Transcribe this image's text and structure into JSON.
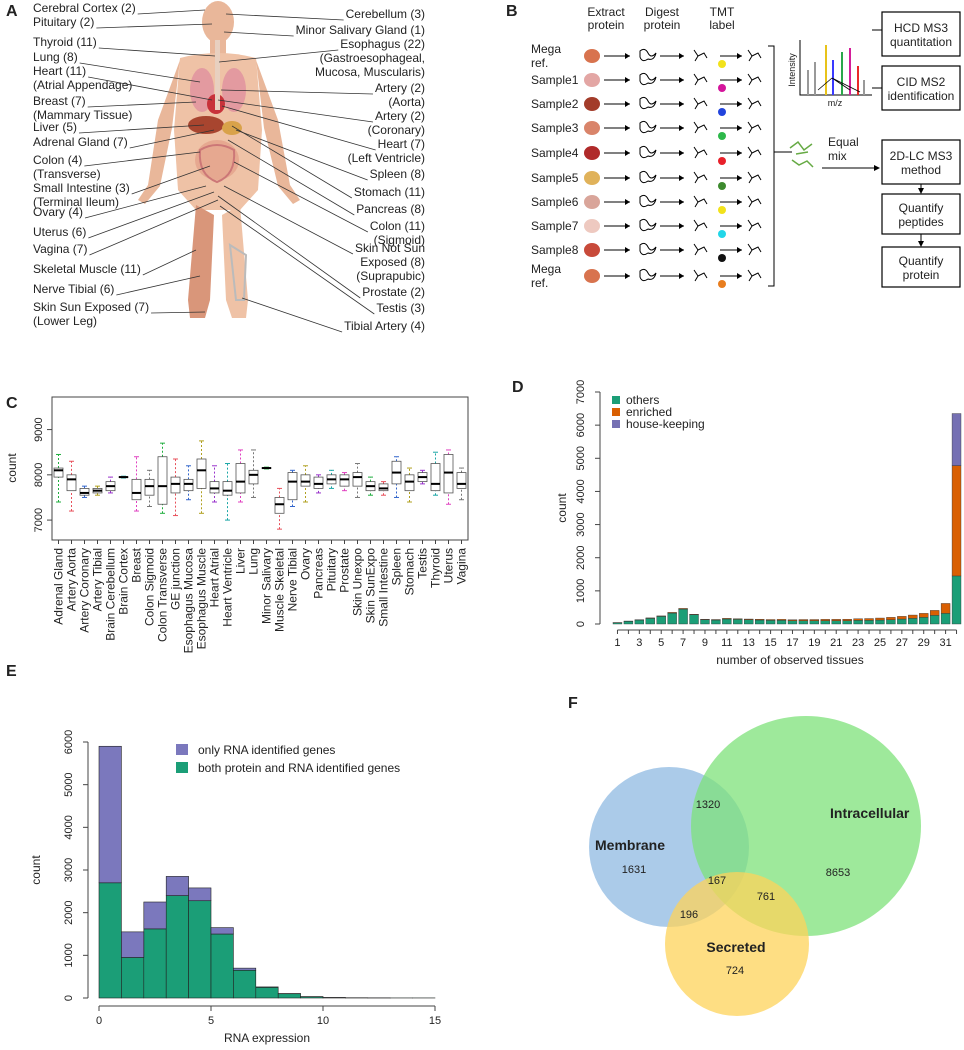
{
  "panel_labels": [
    "A",
    "B",
    "C",
    "D",
    "E",
    "F"
  ],
  "panel_a": {
    "left_labels": [
      [
        "Cerebral Cortex (2)"
      ],
      [
        "Pituitary (2)"
      ],
      [
        "Thyroid (11)"
      ],
      [
        "Lung (8)"
      ],
      [
        "Heart (11)",
        "(Atrial Appendage)"
      ],
      [
        "Breast (7)",
        "(Mammary Tissue)"
      ],
      [
        "Liver (5)"
      ],
      [
        "Adrenal Gland (7)"
      ],
      [
        "Colon (4)",
        "(Transverse)"
      ],
      [
        "Small Intestine (3)",
        "(Terminal Ileum)"
      ],
      [
        "Ovary (4)"
      ],
      [
        "Uterus (6)"
      ],
      [
        "Vagina (7)"
      ],
      [
        "Skeletal Muscle (11)"
      ],
      [
        "Nerve Tibial (6)"
      ],
      [
        "Skin Sun Exposed (7)",
        "(Lower Leg)"
      ]
    ],
    "right_labels": [
      [
        "Cerebellum (3)"
      ],
      [
        "Minor Salivary Gland (1)"
      ],
      [
        "Esophagus (22)",
        "(Gastroesophageal,",
        "Mucosa, Muscularis)"
      ],
      [
        "Artery (2)",
        "(Aorta)"
      ],
      [
        "Artery (2)",
        "(Coronary)"
      ],
      [
        "Heart (7)",
        "(Left Ventricle)"
      ],
      [
        "Spleen (8)"
      ],
      [
        "Stomach (11)"
      ],
      [
        "Pancreas (8)"
      ],
      [
        "Colon (11)",
        "(Sigmoid)"
      ],
      [
        "Skin Not Sun",
        "Exposed (8)",
        "(Suprapubic)"
      ],
      [
        "Prostate (2)"
      ],
      [
        "Testis (3)"
      ],
      [
        "Tibial Artery (4)"
      ]
    ]
  },
  "panel_b": {
    "steps": [
      [
        "Extract",
        "protein"
      ],
      [
        "Digest",
        "protein"
      ],
      [
        "TMT",
        "label"
      ]
    ],
    "samples": [
      [
        "Mega",
        "ref."
      ],
      [
        "Sample1"
      ],
      [
        "Sample2"
      ],
      [
        "Sample3"
      ],
      [
        "Sample4"
      ],
      [
        "Sample5"
      ],
      [
        "Sample6"
      ],
      [
        "Sample7"
      ],
      [
        "Sample8"
      ],
      [
        "Mega",
        "ref."
      ]
    ],
    "tmt_colors": [
      "#f2e21b",
      "#d4149b",
      "#2244dd",
      "#2db84a",
      "#e8202a",
      "#3d8a2e",
      "#f2e21b",
      "#22d6e8",
      "#111111",
      "#e87d1e"
    ],
    "spectrum_y": "Intensity",
    "spectrum_x": "m/z",
    "mix": [
      "Equal",
      "mix"
    ],
    "boxes": [
      [
        "HCD MS3",
        "quantitation"
      ],
      [
        "CID MS2",
        "identification"
      ],
      [
        "2D-LC MS3",
        "method"
      ],
      [
        "Quantify",
        "peptides"
      ],
      [
        "Quantify",
        "protein"
      ]
    ]
  },
  "chart_data": [
    {
      "type": "box",
      "y_label": "count",
      "categories": [
        "Adrenal Gland",
        "Artery Aorta",
        "Artery Coronary",
        "Artery Tibial",
        "Brain Cerebellum",
        "Brain Cortex",
        "Breast",
        "Colon Sigmoid",
        "Colon Transverse",
        "GE junction",
        "Esophagus Mucosa",
        "Esophagus Muscle",
        "Heart Atrial",
        "Heart Ventricle",
        "Liver",
        "Lung",
        "Minor Salivary",
        "Muscle Skeletal",
        "Nerve Tibial",
        "Ovary",
        "Pancreas",
        "Pituitary",
        "Prostate",
        "Skin Unexpo",
        "Skin SunExpo",
        "Small Intestine",
        "Spleen",
        "Stomach",
        "Testis",
        "Thyroid",
        "Uterus",
        "Vagina"
      ],
      "median": [
        8100,
        7900,
        7600,
        7650,
        7750,
        7950,
        7600,
        7750,
        7750,
        7800,
        7800,
        8100,
        7700,
        7650,
        7850,
        8000,
        8150,
        7350,
        7850,
        7850,
        7800,
        7900,
        7900,
        7950,
        7750,
        7700,
        8050,
        7850,
        7950,
        7800,
        8050,
        7800
      ],
      "q1": [
        7950,
        7650,
        7550,
        7600,
        7650,
        7940,
        7450,
        7550,
        7350,
        7600,
        7650,
        7700,
        7600,
        7550,
        7600,
        7800,
        8140,
        7150,
        7450,
        7750,
        7700,
        7800,
        7750,
        7750,
        7650,
        7650,
        7800,
        7650,
        7850,
        7650,
        7600,
        7700
      ],
      "q3": [
        8150,
        8000,
        7700,
        7700,
        7850,
        7960,
        7900,
        7900,
        8400,
        7950,
        7900,
        8350,
        7850,
        7850,
        8250,
        8100,
        8160,
        7500,
        8050,
        8000,
        7950,
        8000,
        8000,
        8050,
        7850,
        7800,
        8300,
        8000,
        8050,
        8250,
        8450,
        8050
      ],
      "min": [
        7400,
        7200,
        7500,
        7550,
        7600,
        7930,
        7200,
        7300,
        7150,
        7100,
        7450,
        7150,
        7400,
        7000,
        7400,
        7500,
        8130,
        6800,
        7300,
        7400,
        7600,
        7700,
        7650,
        7500,
        7550,
        7550,
        7500,
        7400,
        7800,
        7550,
        7350,
        7450
      ],
      "max": [
        8450,
        8300,
        7750,
        7750,
        7950,
        7970,
        8400,
        8100,
        8700,
        8350,
        8200,
        8750,
        8200,
        8250,
        8550,
        8550,
        8170,
        7700,
        8100,
        8200,
        8000,
        8100,
        8050,
        8250,
        7950,
        7850,
        8400,
        8150,
        8100,
        8500,
        8550,
        8150
      ],
      "palette": [
        "#1fae3e",
        "#e8505b",
        "#3366cc",
        "#b0a020",
        "#9933cc",
        "#1aa6a6",
        "#e040c0",
        "#777777"
      ],
      "ylim": [
        6560,
        9720
      ],
      "yticks": [
        7000,
        8000,
        9000
      ]
    },
    {
      "type": "stacked_bar",
      "x_label": "number of observed tissues",
      "y_label": "count",
      "categories": [
        "1",
        null,
        "3",
        null,
        "5",
        null,
        "7",
        null,
        "9",
        null,
        "11",
        null,
        "13",
        null,
        "15",
        null,
        "17",
        null,
        "19",
        null,
        "21",
        null,
        "23",
        null,
        "25",
        null,
        "27",
        null,
        "29",
        null,
        "31",
        null
      ],
      "series": [
        {
          "name": "others",
          "color": "#1b9e77",
          "values": [
            40,
            80,
            120,
            170,
            230,
            330,
            450,
            280,
            130,
            120,
            150,
            140,
            130,
            120,
            110,
            110,
            100,
            100,
            100,
            100,
            100,
            100,
            110,
            110,
            120,
            130,
            150,
            170,
            200,
            260,
            320,
            1450
          ]
        },
        {
          "name": "enriched",
          "color": "#d95f02",
          "values": [
            5,
            10,
            10,
            15,
            15,
            20,
            20,
            15,
            15,
            15,
            20,
            20,
            20,
            25,
            25,
            30,
            30,
            35,
            35,
            40,
            40,
            45,
            50,
            55,
            60,
            70,
            80,
            100,
            120,
            150,
            300,
            3330
          ]
        },
        {
          "name": "house-keeping",
          "color": "#7570b3",
          "values": [
            0,
            0,
            0,
            0,
            0,
            0,
            0,
            0,
            0,
            0,
            0,
            0,
            0,
            0,
            0,
            0,
            0,
            0,
            0,
            0,
            0,
            0,
            0,
            0,
            0,
            0,
            0,
            0,
            0,
            0,
            0,
            1570
          ]
        }
      ],
      "legend": "top-left",
      "ylim": [
        0,
        7000
      ],
      "yticks": [
        0,
        1000,
        2000,
        3000,
        4000,
        5000,
        6000,
        7000
      ]
    },
    {
      "type": "histogram",
      "x_label": "RNA expression",
      "y_label": "count",
      "bins": [
        0,
        1,
        2,
        3,
        4,
        5,
        6,
        7,
        8,
        9,
        10,
        11,
        12,
        13,
        14,
        15
      ],
      "series": [
        {
          "name": "only RNA identified genes",
          "color": "#7b78bd",
          "values": [
            3200,
            600,
            630,
            450,
            300,
            150,
            50,
            10,
            5,
            3,
            2,
            1,
            1,
            0,
            0
          ]
        },
        {
          "name": "both protein and RNA identified genes",
          "color": "#1b9e77",
          "values": [
            2700,
            950,
            1620,
            2400,
            2280,
            1500,
            650,
            250,
            100,
            30,
            10,
            5,
            3,
            2,
            2
          ]
        }
      ],
      "legend": "top-right",
      "xlim": [
        0,
        15
      ],
      "xticks": [
        0,
        5,
        10,
        15
      ],
      "ylim": [
        0,
        6000
      ],
      "yticks": [
        0,
        1000,
        2000,
        3000,
        4000,
        5000,
        6000
      ]
    },
    {
      "type": "venn",
      "sets": [
        {
          "name": "Membrane",
          "color": "#8fb9e2"
        },
        {
          "name": "Intracellular",
          "color": "#7de27a"
        },
        {
          "name": "Secreted",
          "color": "#fdd35a"
        }
      ],
      "regions": {
        "membrane-only": 1631,
        "membrane-intracellular": 1320,
        "intracellular-only": 8653,
        "all": 167,
        "intracellular-secreted": 761,
        "membrane-secreted": 196,
        "secreted-only": 724
      }
    }
  ]
}
